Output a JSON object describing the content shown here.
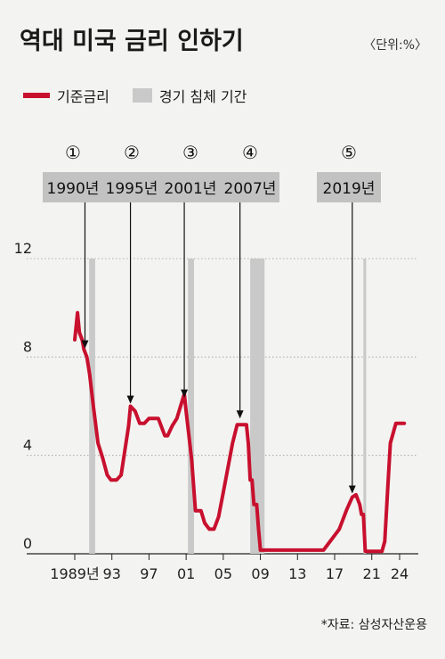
{
  "header": {
    "title": "역대 미국 금리 인하기",
    "unit": "〈단위:%〉"
  },
  "legend": {
    "rate_label": "기준금리",
    "recession_label": "경기 침체 기간"
  },
  "source": "*자료: 삼성자산운용",
  "colors": {
    "rate_line": "#c8102e",
    "recession": "#c9c9c9",
    "label_box": "#c2c2c2",
    "background": "#f3f3f1"
  },
  "chart_data": {
    "type": "line",
    "title": "역대 미국 금리 인하기",
    "xlabel": "",
    "ylabel": "",
    "ylim": [
      0,
      12
    ],
    "yticks": [
      0,
      4,
      8,
      12
    ],
    "xlim": [
      1988.5,
      2025
    ],
    "xticks": [
      {
        "x": 1989,
        "label": "1989년"
      },
      {
        "x": 1993,
        "label": "93"
      },
      {
        "x": 1997,
        "label": "97"
      },
      {
        "x": 2001,
        "label": "01"
      },
      {
        "x": 2005,
        "label": "05"
      },
      {
        "x": 2009,
        "label": "09"
      },
      {
        "x": 2013,
        "label": "13"
      },
      {
        "x": 2017,
        "label": "17"
      },
      {
        "x": 2021,
        "label": "21"
      },
      {
        "x": 2024,
        "label": "24"
      }
    ],
    "grid": true,
    "series": [
      {
        "name": "기준금리",
        "x": [
          1989.0,
          1989.3,
          1989.5,
          1989.8,
          1990.0,
          1990.3,
          1990.6,
          1991.0,
          1991.5,
          1992.0,
          1992.5,
          1992.9,
          1993.5,
          1994.0,
          1994.4,
          1994.8,
          1995.0,
          1995.5,
          1996.0,
          1996.5,
          1997.0,
          1997.5,
          1998.0,
          1998.7,
          1999.0,
          1999.5,
          2000.0,
          2000.4,
          2000.8,
          2001.0,
          2001.3,
          2001.6,
          2002.0,
          2002.6,
          2003.0,
          2003.5,
          2004.0,
          2004.5,
          2005.0,
          2005.5,
          2006.0,
          2006.5,
          2007.0,
          2007.5,
          2007.7,
          2007.9,
          2008.1,
          2008.3,
          2008.6,
          2008.8,
          2009.0,
          2012.0,
          2015.8,
          2016.3,
          2016.9,
          2017.5,
          2017.9,
          2018.3,
          2018.9,
          2019.3,
          2019.7,
          2019.9,
          2020.1,
          2020.3,
          2022.1,
          2022.4,
          2022.7,
          2023.0,
          2023.6,
          2024.5
        ],
        "values": [
          8.7,
          9.8,
          9.0,
          8.7,
          8.3,
          8.0,
          7.3,
          6.0,
          4.5,
          3.9,
          3.2,
          3.0,
          3.0,
          3.2,
          4.2,
          5.2,
          6.0,
          5.8,
          5.3,
          5.3,
          5.5,
          5.5,
          5.5,
          4.8,
          4.8,
          5.2,
          5.5,
          6.0,
          6.5,
          5.8,
          4.8,
          3.8,
          1.75,
          1.75,
          1.25,
          1.0,
          1.0,
          1.5,
          2.5,
          3.5,
          4.5,
          5.25,
          5.25,
          5.25,
          4.5,
          3.0,
          3.0,
          2.0,
          2.0,
          1.0,
          0.15,
          0.15,
          0.15,
          0.4,
          0.7,
          1.0,
          1.4,
          1.8,
          2.3,
          2.4,
          2.0,
          1.6,
          1.6,
          0.1,
          0.1,
          0.5,
          2.5,
          4.5,
          5.3,
          5.3
        ]
      }
    ],
    "recessions": [
      {
        "start": 1990.55,
        "end": 1991.2
      },
      {
        "start": 2001.2,
        "end": 2001.85
      },
      {
        "start": 2007.9,
        "end": 2009.45
      },
      {
        "start": 2020.1,
        "end": 2020.4
      }
    ],
    "annotations": [
      {
        "num": "①",
        "label": "1990년",
        "x": 1990.1,
        "value": 8.1
      },
      {
        "num": "②",
        "label": "1995년",
        "x": 1995.0,
        "value": 5.85
      },
      {
        "num": "③",
        "label": "2001년",
        "x": 2000.8,
        "value": 6.1
      },
      {
        "num": "④",
        "label": "2007년",
        "x": 2006.8,
        "value": 5.25
      },
      {
        "num": "⑤",
        "label": "2019년",
        "x": 2018.9,
        "value": 2.2
      }
    ]
  }
}
